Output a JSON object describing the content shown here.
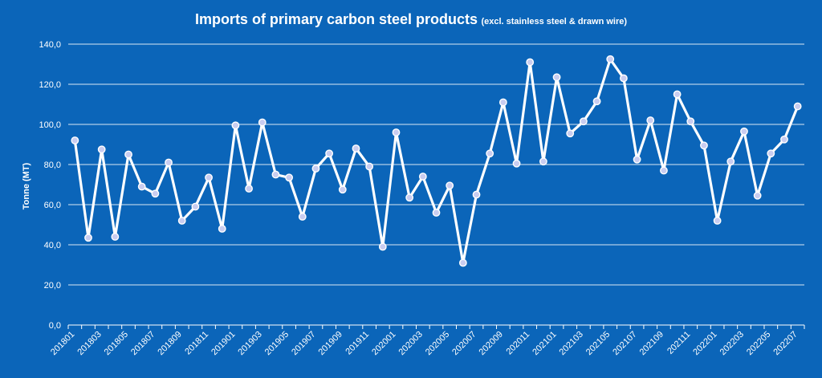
{
  "chart_data": {
    "type": "line",
    "title": "Imports of primary carbon steel products",
    "subtitle": "(excl. stainless steel & drawn wire)",
    "xlabel": "",
    "ylabel": "Tonne (MT)",
    "ylim": [
      0,
      140
    ],
    "yticks": [
      "0,0",
      "20,0",
      "40,0",
      "60,0",
      "80,0",
      "100,0",
      "120,0",
      "140,0"
    ],
    "x": [
      "201801",
      "201802",
      "201803",
      "201804",
      "201805",
      "201806",
      "201807",
      "201808",
      "201809",
      "201810",
      "201811",
      "201812",
      "201901",
      "201902",
      "201903",
      "201904",
      "201905",
      "201906",
      "201907",
      "201908",
      "201909",
      "201910",
      "201911",
      "201912",
      "202001",
      "202002",
      "202003",
      "202004",
      "202005",
      "202006",
      "202007",
      "202008",
      "202009",
      "202010",
      "202011",
      "202012",
      "202101",
      "202102",
      "202103",
      "202104",
      "202105",
      "202106",
      "202107",
      "202108",
      "202109",
      "202110",
      "202111",
      "202112",
      "202201",
      "202202",
      "202203",
      "202204",
      "202205",
      "202206",
      "202207"
    ],
    "xtick_labels": [
      "201801",
      "201803",
      "201805",
      "201807",
      "201809",
      "201811",
      "201901",
      "201903",
      "201905",
      "201907",
      "201909",
      "201911",
      "202001",
      "202003",
      "202005",
      "202007",
      "202009",
      "202011",
      "202101",
      "202103",
      "202105",
      "202107",
      "202109",
      "202111",
      "202201",
      "202203",
      "202205",
      "202207"
    ],
    "series": [
      {
        "name": "Imports",
        "values": [
          92,
          43.5,
          87.5,
          44,
          85,
          69,
          65.5,
          81,
          52,
          59,
          73.5,
          48,
          99.5,
          68,
          101,
          75,
          73.5,
          54,
          78,
          85.5,
          67.5,
          88,
          79,
          39,
          96,
          63.5,
          74,
          56,
          69.5,
          31,
          65,
          85.5,
          111,
          80.5,
          131,
          81.5,
          123.5,
          95.5,
          101.5,
          111.5,
          132.5,
          123,
          82.5,
          102,
          77,
          115,
          101.5,
          89.5,
          52,
          81.5,
          96.5,
          64.5,
          85.5,
          92.5,
          109
        ]
      }
    ],
    "grid": true,
    "legend": "none"
  },
  "colors": {
    "background": "#0b65b9",
    "line": "#ffffff",
    "marker_fill": "#c9cdf0",
    "text": "#ffffff"
  }
}
